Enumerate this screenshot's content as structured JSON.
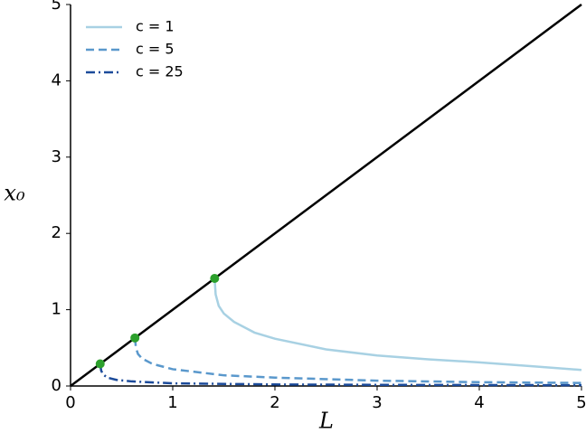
{
  "chart_data": {
    "type": "line",
    "xlabel": "L",
    "ylabel": "x₀",
    "xlim": [
      0,
      5
    ],
    "ylim": [
      0,
      5
    ],
    "xticks": [
      0,
      1,
      2,
      3,
      4,
      5
    ],
    "yticks": [
      0,
      1,
      2,
      3,
      4,
      5
    ],
    "legend": "upper left",
    "series": [
      {
        "color": "#000000",
        "dash": "solid",
        "x": [
          0,
          5
        ],
        "values": [
          0,
          5
        ]
      },
      {
        "name": "c = 1",
        "color": "#a8d1e3",
        "dash": "solid",
        "x": [
          1.41,
          1.42,
          1.45,
          1.5,
          1.6,
          1.8,
          2,
          2.5,
          3,
          3.5,
          4,
          4.5,
          5
        ],
        "values": [
          1.41,
          1.2,
          1.05,
          0.95,
          0.84,
          0.7,
          0.62,
          0.48,
          0.4,
          0.35,
          0.31,
          0.26,
          0.21
        ]
      },
      {
        "name": "c = 5",
        "color": "#5a98cc",
        "dash": "dashed",
        "x": [
          0.63,
          0.64,
          0.66,
          0.7,
          0.8,
          1,
          1.5,
          2,
          3,
          4,
          5
        ],
        "values": [
          0.63,
          0.5,
          0.42,
          0.36,
          0.29,
          0.22,
          0.14,
          0.11,
          0.07,
          0.05,
          0.04
        ]
      },
      {
        "name": "c = 25",
        "color": "#1c4b9a",
        "dash": "dashdot",
        "x": [
          0.29,
          0.3,
          0.32,
          0.36,
          0.45,
          0.6,
          1,
          2,
          3,
          5
        ],
        "values": [
          0.29,
          0.2,
          0.15,
          0.11,
          0.08,
          0.06,
          0.035,
          0.02,
          0.015,
          0.01
        ]
      }
    ],
    "points": {
      "color": "#2ca02c",
      "x": [
        1.41,
        0.63,
        0.29
      ],
      "values": [
        1.41,
        0.63,
        0.29
      ]
    }
  }
}
